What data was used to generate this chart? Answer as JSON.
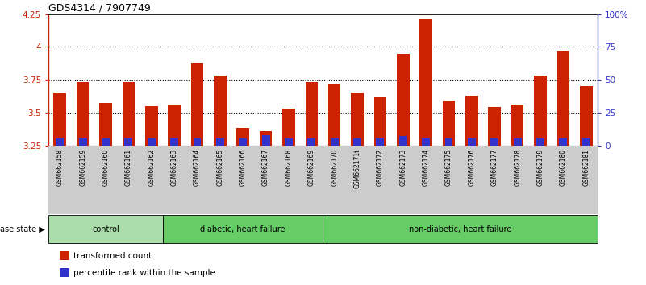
{
  "title": "GDS4314 / 7907749",
  "samples": [
    "GSM662158",
    "GSM662159",
    "GSM662160",
    "GSM662161",
    "GSM662162",
    "GSM662163",
    "GSM662164",
    "GSM662165",
    "GSM662166",
    "GSM662167",
    "GSM662168",
    "GSM662169",
    "GSM662170",
    "GSM662171t",
    "GSM662172",
    "GSM662173",
    "GSM662174",
    "GSM662175",
    "GSM662176",
    "GSM662177",
    "GSM662178",
    "GSM662179",
    "GSM662180",
    "GSM662181"
  ],
  "red_values": [
    3.65,
    3.73,
    3.57,
    3.73,
    3.55,
    3.56,
    3.88,
    3.78,
    3.38,
    3.36,
    3.53,
    3.73,
    3.72,
    3.65,
    3.62,
    3.95,
    4.22,
    3.59,
    3.63,
    3.54,
    3.56,
    3.78,
    3.97,
    3.7
  ],
  "blue_values": [
    0.05,
    0.05,
    0.05,
    0.05,
    0.05,
    0.05,
    0.05,
    0.05,
    0.05,
    0.08,
    0.05,
    0.05,
    0.05,
    0.05,
    0.05,
    0.07,
    0.05,
    0.05,
    0.05,
    0.05,
    0.05,
    0.05,
    0.05,
    0.05
  ],
  "ylim_left": [
    3.25,
    4.25
  ],
  "ylim_right": [
    0,
    100
  ],
  "yticks_left": [
    3.25,
    3.5,
    3.75,
    4.0,
    4.25
  ],
  "yticks_right": [
    0,
    25,
    50,
    75,
    100
  ],
  "ytick_labels_right": [
    "0",
    "25",
    "50",
    "75",
    "100%"
  ],
  "ytick_labels_left": [
    "3.25",
    "3.5",
    "3.75",
    "4",
    "4.25"
  ],
  "group_defs": [
    {
      "start": 0,
      "end": 5,
      "label": "control",
      "color": "#aaddaa"
    },
    {
      "start": 5,
      "end": 12,
      "label": "diabetic, heart failure",
      "color": "#66cc66"
    },
    {
      "start": 12,
      "end": 24,
      "label": "non-diabetic, heart failure",
      "color": "#66cc66"
    }
  ],
  "bar_color_red": "#cc2200",
  "bar_color_blue": "#3333cc",
  "base_value": 3.25,
  "legend_items": [
    {
      "label": "transformed count",
      "color": "#cc2200"
    },
    {
      "label": "percentile rank within the sample",
      "color": "#3333cc"
    }
  ],
  "disease_state_label": "disease state",
  "left_axis_color": "#cc2200",
  "right_axis_color": "#3333cc",
  "bar_width": 0.55,
  "blue_bar_width": 0.35,
  "tick_label_bg": "#cccccc",
  "grid_linestyle": ":",
  "grid_color": "#000000",
  "grid_linewidth": 0.8
}
